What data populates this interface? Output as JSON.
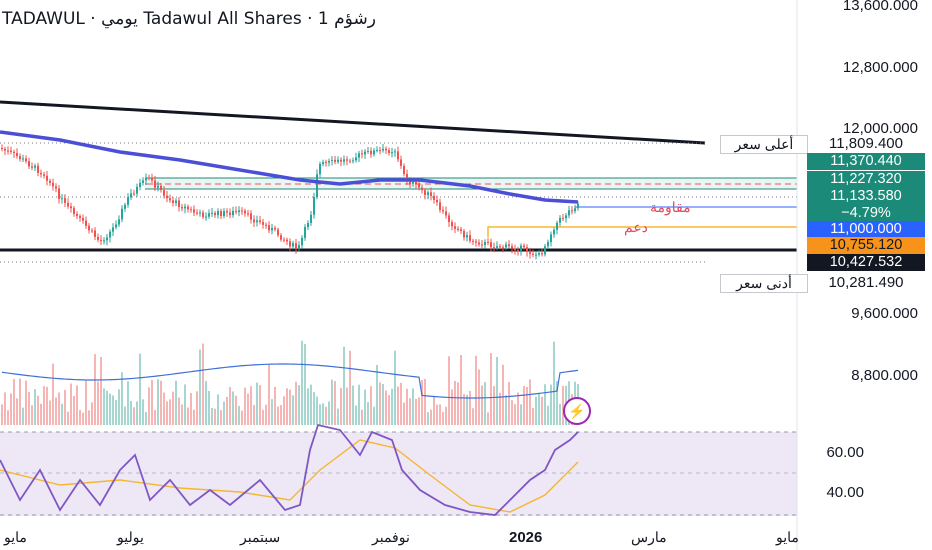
{
  "header": {
    "title": "TADAWUL · يومي Tadawul All Shares · 1 رشؤم"
  },
  "price_axis": {
    "labels": [
      "13,600.000",
      "12,800.000",
      "12,000.000",
      "9,600.000",
      "8,800.000"
    ]
  },
  "high_label": {
    "tag": "أعلى سعر",
    "value": "11,809.400"
  },
  "low_label": {
    "tag": "أدنى سعر",
    "value": "10,281.490"
  },
  "badges": {
    "b1": "11,370.440",
    "b2": "11,227.320",
    "b3_price": "11,133.580",
    "b3_change": "−4.79%",
    "b4": "11,000.000",
    "b5": "10,755.120",
    "b6": "10,427.532"
  },
  "annotations": {
    "resistance": "مقاومة",
    "support": "دعم"
  },
  "rsi_axis": {
    "labels": [
      "60.00",
      "40.00"
    ]
  },
  "time_axis": {
    "labels": [
      "مايو",
      "يوليو",
      "سبتمبر",
      "نوفمبر",
      "2026",
      "مارس",
      "مايو"
    ]
  },
  "colors": {
    "up": "#26a69a",
    "down": "#ef5350",
    "ma": "#4a4fd6",
    "rsi": "#7e57c2",
    "rsi_ma": "#f5b731",
    "badge_teal": "#1b8a79",
    "badge_blue": "#2962ff",
    "badge_orange": "#f7931a",
    "badge_black": "#131722"
  }
}
